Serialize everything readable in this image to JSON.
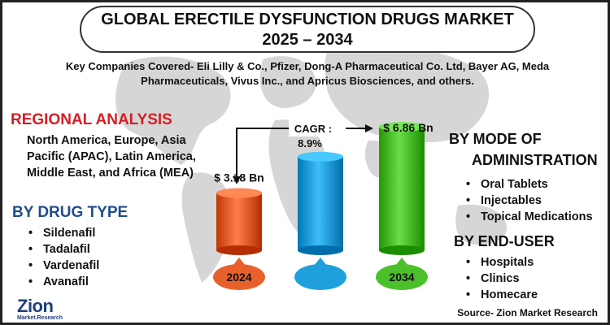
{
  "title": {
    "line1": "GLOBAL ERECTILE DYSFUNCTION DRUGS MARKET",
    "line2": "2025 – 2034"
  },
  "companies_text": "Key Companies Covered- Eli Lilly & Co., Pfizer, Dong-A Pharmaceutical Co. Ltd, Bayer AG, Meda Pharmaceuticals, Vivus Inc., and Apricus Biosciences, and others.",
  "regional": {
    "heading": "REGIONAL ANALYSIS",
    "text": "North America, Europe, Asia Pacific (APAC), Latin America, Middle East, and Africa (MEA)"
  },
  "drug_type": {
    "heading": "BY DRUG TYPE",
    "items": [
      "Sildenafil",
      "Tadalafil",
      "Vardenafil",
      "Avanafil"
    ]
  },
  "mode": {
    "heading_line1": "BY MODE OF",
    "heading_line2": "ADMINISTRATION",
    "items": [
      "Oral Tablets",
      "Injectables",
      "Topical Medications"
    ]
  },
  "end_user": {
    "heading": "BY END-USER",
    "items": [
      "Hospitals",
      "Clinics",
      "Homecare"
    ]
  },
  "source": "Source- Zion Market Research",
  "logo": {
    "main": "Zion",
    "sub": "Market.Research"
  },
  "colors": {
    "bar_2024": "#e8602c",
    "bar_mid": "#1fa0dc",
    "bar_2034": "#4cc02a",
    "heading_red": "#d41f26",
    "heading_blue": "#1f4e8c"
  },
  "chart_data": {
    "type": "bar",
    "categories": [
      "2024",
      "",
      "2034"
    ],
    "values": [
      3.18,
      5.2,
      6.86
    ],
    "value_labels": [
      "$ 3.18 Bn",
      "",
      "$ 6.86 Bn"
    ],
    "cagr_label": "CAGR :",
    "cagr_value": "8.9%",
    "ylim": [
      0,
      7
    ]
  }
}
